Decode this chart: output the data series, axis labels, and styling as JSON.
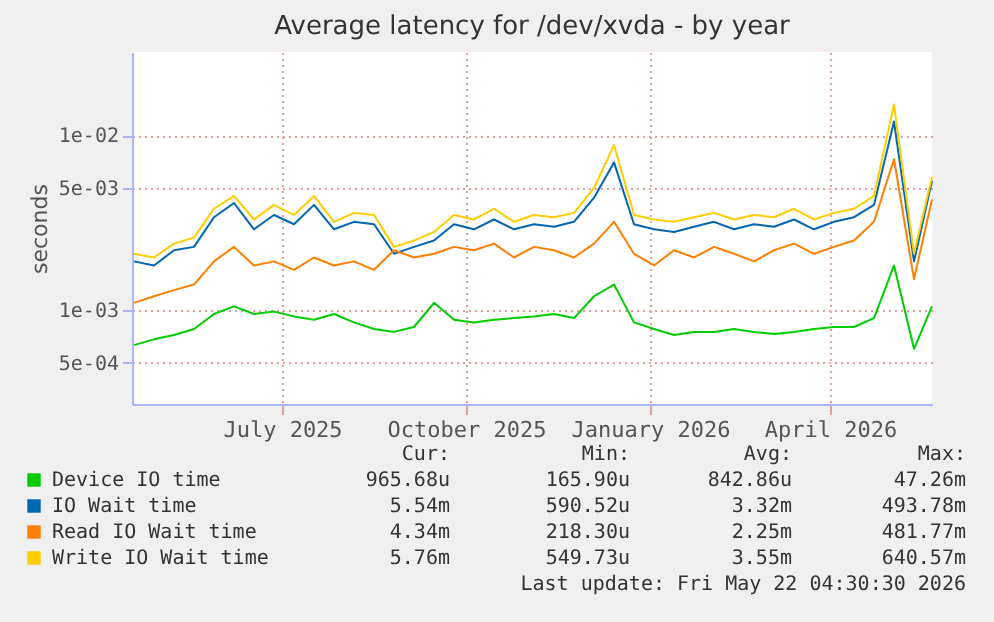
{
  "chart_data": {
    "type": "line",
    "title": "Average latency for /dev/xvda - by year",
    "ylabel": "seconds",
    "x": [
      "2025-04-18",
      "2025-04-28",
      "2025-05-08",
      "2025-05-18",
      "2025-05-28",
      "2025-06-07",
      "2025-06-17",
      "2025-06-27",
      "2025-07-07",
      "2025-07-17",
      "2025-07-27",
      "2025-08-06",
      "2025-08-16",
      "2025-08-26",
      "2025-09-05",
      "2025-09-15",
      "2025-09-25",
      "2025-10-05",
      "2025-10-15",
      "2025-10-25",
      "2025-11-04",
      "2025-11-14",
      "2025-11-24",
      "2025-12-04",
      "2025-12-14",
      "2025-12-24",
      "2026-01-03",
      "2026-01-13",
      "2026-01-23",
      "2026-02-02",
      "2026-02-12",
      "2026-02-22",
      "2026-03-04",
      "2026-03-14",
      "2026-03-24",
      "2026-04-03",
      "2026-04-13",
      "2026-04-23",
      "2026-05-03",
      "2026-05-13",
      "2026-05-22"
    ],
    "series": [
      {
        "name": "Device IO time",
        "color": "#00cc00",
        "values": [
          0.00063,
          0.00068,
          0.00072,
          0.00078,
          0.00095,
          0.00105,
          0.00095,
          0.00098,
          0.00092,
          0.00088,
          0.00095,
          0.00085,
          0.00078,
          0.00075,
          0.0008,
          0.0011,
          0.00088,
          0.00085,
          0.00088,
          0.0009,
          0.00092,
          0.00095,
          0.0009,
          0.0012,
          0.0014,
          0.00085,
          0.00078,
          0.00072,
          0.00075,
          0.00075,
          0.00078,
          0.00075,
          0.00073,
          0.00075,
          0.00078,
          0.0008,
          0.0008,
          0.0009,
          0.0018,
          0.0006,
          0.00105
        ]
      },
      {
        "name": "IO Wait time",
        "color": "#0066b3",
        "values": [
          0.0019,
          0.0018,
          0.0022,
          0.0023,
          0.0034,
          0.0041,
          0.0029,
          0.0035,
          0.0031,
          0.004,
          0.0029,
          0.0032,
          0.0031,
          0.0021,
          0.0023,
          0.0025,
          0.0031,
          0.0029,
          0.0033,
          0.0029,
          0.0031,
          0.003,
          0.0032,
          0.0044,
          0.007,
          0.0031,
          0.0029,
          0.0028,
          0.003,
          0.0032,
          0.0029,
          0.0031,
          0.003,
          0.0033,
          0.0029,
          0.0032,
          0.0034,
          0.004,
          0.012,
          0.0019,
          0.0055
        ]
      },
      {
        "name": "Read IO Wait time",
        "color": "#ff8000",
        "values": [
          0.0011,
          0.0012,
          0.0013,
          0.0014,
          0.0019,
          0.0023,
          0.0018,
          0.0019,
          0.0017,
          0.002,
          0.0018,
          0.0019,
          0.0017,
          0.0022,
          0.002,
          0.0021,
          0.0023,
          0.0022,
          0.0024,
          0.002,
          0.0023,
          0.0022,
          0.002,
          0.0024,
          0.0032,
          0.0021,
          0.0018,
          0.0022,
          0.002,
          0.0023,
          0.0021,
          0.0019,
          0.0022,
          0.0024,
          0.0021,
          0.0023,
          0.0025,
          0.0032,
          0.0073,
          0.0015,
          0.0043
        ]
      },
      {
        "name": "Write IO Wait time",
        "color": "#ffcc00",
        "values": [
          0.0021,
          0.002,
          0.0024,
          0.0026,
          0.0038,
          0.0045,
          0.0033,
          0.004,
          0.0035,
          0.0045,
          0.0032,
          0.0036,
          0.0035,
          0.0023,
          0.0025,
          0.0028,
          0.0035,
          0.0033,
          0.0038,
          0.0032,
          0.0035,
          0.0034,
          0.0036,
          0.005,
          0.0088,
          0.0035,
          0.0033,
          0.0032,
          0.0034,
          0.0036,
          0.0033,
          0.0035,
          0.0034,
          0.0038,
          0.0033,
          0.0036,
          0.0038,
          0.0045,
          0.015,
          0.0021,
          0.0058
        ]
      }
    ],
    "xlim": [
      "2025-04-17",
      "2026-05-22"
    ],
    "xticks": [
      {
        "value": "2025-07-01",
        "label": "July 2025"
      },
      {
        "value": "2025-10-01",
        "label": "October 2025"
      },
      {
        "value": "2026-01-01",
        "label": "January 2026"
      },
      {
        "value": "2026-04-01",
        "label": "April 2026"
      }
    ],
    "ylim": [
      0.00029,
      0.03
    ],
    "log": true,
    "yticks": [
      {
        "value": 0.0005,
        "label": "5e-04"
      },
      {
        "value": 0.001,
        "label": "1e-03"
      },
      {
        "value": 0.005,
        "label": "5e-03"
      },
      {
        "value": 0.01,
        "label": "1e-02"
      }
    ],
    "grid": true,
    "legend": "bottom",
    "marker": "none",
    "line_style": "solid",
    "annotations": [
      "Cur:",
      "Min:",
      "Avg:",
      "Max:",
      "965.68u",
      "165.90u",
      "842.86u",
      "47.26m",
      "5.54m",
      "590.52u",
      "3.32m",
      "493.78m",
      "4.34m",
      "218.30u",
      "2.25m",
      "481.77m",
      "5.76m",
      "549.73u",
      "3.55m",
      "640.57m",
      "Last update: Fri May 22 04:30:30 2026"
    ]
  }
}
